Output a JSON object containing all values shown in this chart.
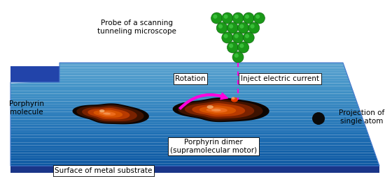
{
  "bg_color": "#ffffff",
  "probe_green": "#1a9918",
  "probe_green_light": "#55dd55",
  "probe_green_dark": "#0a5a0a",
  "arrow_color": "#ff00dd",
  "dashed_color": "#ff00dd",
  "label_rotation": "Rotation",
  "label_inject": "Inject electric current",
  "label_probe": "Probe of a scanning\ntunneling microscope",
  "label_porphyrin": "Porphyrin\nmolecule",
  "label_dimer": "Porphyrin dimer\n(supramolecular motor)",
  "label_surface": "Surface of metal substrate",
  "label_projection": "Projection of\nsingle atom",
  "text_color": "#000000",
  "box_bg": "#ffffff",
  "atom_dark": "#0a0a0a",
  "surf_blue1": "#3a7fd5",
  "surf_blue2": "#2255bb",
  "surf_blue3": "#1a3a99",
  "surf_edge": "#5599ee"
}
